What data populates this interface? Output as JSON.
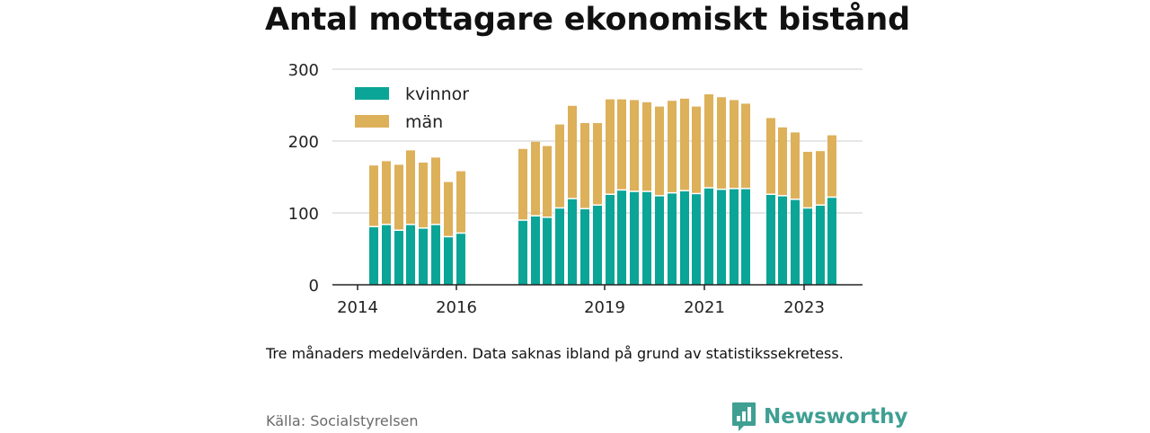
{
  "colors": {
    "kvinnor": "#0aa597",
    "man": "#ddb05a",
    "grid": "#dddddd",
    "axis": "#222222",
    "brand": "#3f9f93"
  },
  "chart_data": {
    "type": "bar",
    "stacked": true,
    "title": "Antal mottagare ekonomiskt bistånd",
    "xlabel": "",
    "ylabel": "",
    "ylim": [
      0,
      300
    ],
    "y_ticks": [
      0,
      100,
      200,
      300
    ],
    "x_ticks": [
      "2014",
      "2016",
      "2019",
      "2021",
      "2023"
    ],
    "grid": true,
    "legend_position": "top-left",
    "series": [
      {
        "name": "kvinnor",
        "values": [
          80,
          83,
          75,
          83,
          78,
          83,
          66,
          71,
          89,
          95,
          93,
          106,
          119,
          105,
          110,
          125,
          131,
          129,
          129,
          123,
          127,
          130,
          126,
          134,
          132,
          133,
          133,
          125,
          123,
          118,
          106,
          110,
          121
        ]
      },
      {
        "name": "män",
        "values": [
          86,
          89,
          92,
          104,
          92,
          94,
          77,
          87,
          100,
          104,
          100,
          117,
          130,
          120,
          115,
          133,
          127,
          128,
          125,
          125,
          129,
          129,
          122,
          131,
          129,
          124,
          119,
          107,
          96,
          94,
          79,
          76,
          87
        ]
      }
    ]
  },
  "note": "Tre månaders medelvärden. Data saknas ibland på grund av statistikssekretess.",
  "source": "Källa: Socialstyrelsen",
  "brand": {
    "name": "Newsworthy",
    "icon": "bar-chart-speech-bubble-icon"
  }
}
